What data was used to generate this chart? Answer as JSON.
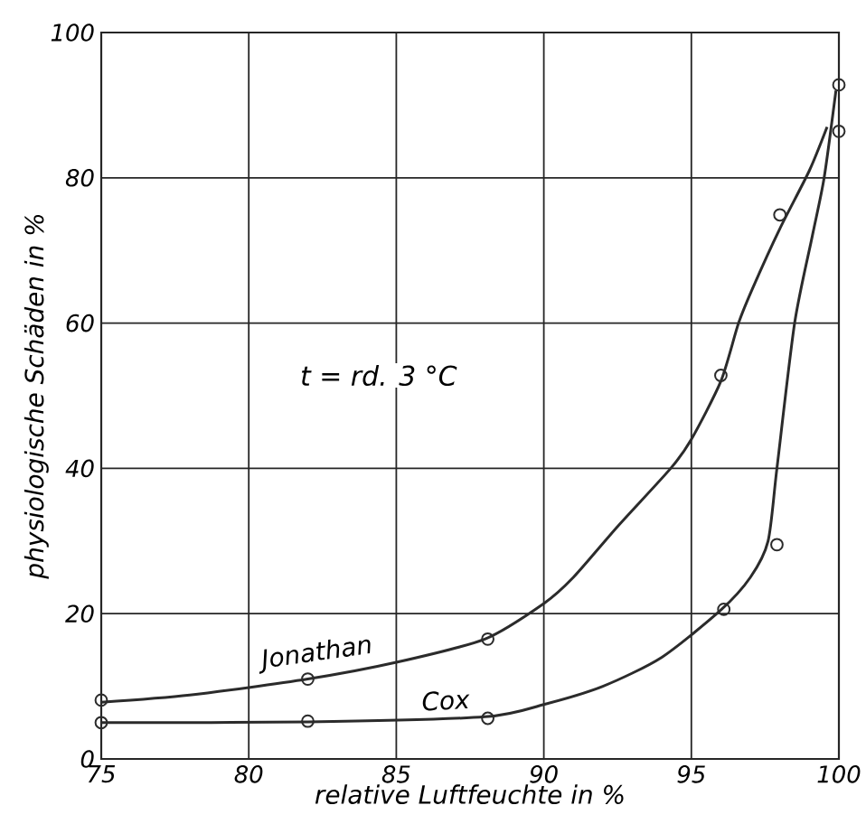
{
  "chart_data": {
    "type": "scatter",
    "xlabel": "relative Luftfeuchte in %",
    "ylabel": "physiologische Schäden in %",
    "annotations": [
      "t = rd. 3 °C"
    ],
    "xlim": [
      75,
      100
    ],
    "ylim": [
      0,
      100
    ],
    "xticks": [
      75,
      80,
      85,
      90,
      95,
      100
    ],
    "yticks": [
      0,
      20,
      40,
      60,
      80,
      100
    ],
    "grid": true,
    "series": [
      {
        "marker": "circle",
        "color": "#2b2b2b",
        "x": [
          75,
          82,
          88.1,
          96,
          98,
          100
        ],
        "values": [
          8.1,
          11,
          16.5,
          52.8,
          74.9,
          86.4
        ]
      },
      {
        "marker": "circle",
        "color": "#2b2b2b",
        "x": [
          75,
          82,
          88.1,
          96.1,
          97.9,
          100
        ],
        "values": [
          5,
          5.2,
          5.6,
          20.6,
          29.5,
          92.8
        ]
      },
      {
        "type": "line",
        "name": "Jonathan",
        "marker": "none",
        "line_style": "solid",
        "color": "#2b2b2b",
        "x": [
          75,
          78,
          82,
          85,
          88,
          90,
          91,
          92.5,
          94.3,
          95,
          96,
          96.6,
          97.1,
          98,
          99,
          99.6
        ],
        "values": [
          7.8,
          8.8,
          11,
          13.3,
          16.5,
          21.4,
          25,
          32,
          40,
          44,
          52,
          60,
          65,
          73,
          81,
          87
        ]
      },
      {
        "type": "line",
        "name": "Cox",
        "marker": "none",
        "line_style": "solid",
        "color": "#2b2b2b",
        "x": [
          75,
          82,
          88,
          90,
          92,
          94,
          96,
          97,
          97.6,
          97.9,
          98.5,
          99.1,
          99.5,
          99.9
        ],
        "values": [
          5,
          5.1,
          5.8,
          7.5,
          10,
          14,
          20.5,
          25,
          30,
          40,
          60,
          72,
          80,
          92
        ]
      }
    ]
  }
}
